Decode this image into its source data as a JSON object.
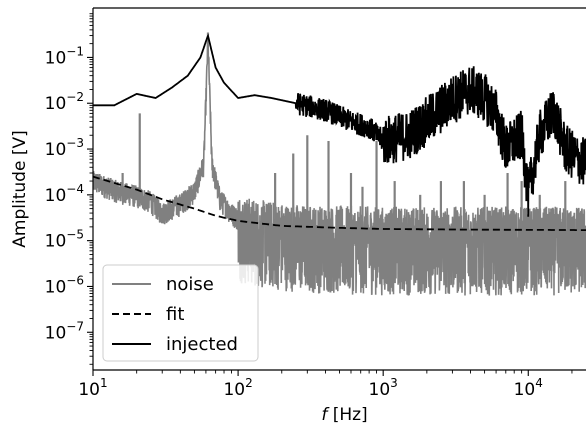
{
  "chart_data": {
    "type": "line",
    "title": "",
    "xlabel_italic": "f",
    "xlabel_unit": " [Hz]",
    "ylabel": "Amplitude [V]",
    "xscale": "log",
    "yscale": "log",
    "xlim": [
      10,
      25000
    ],
    "ylim": [
      1.5e-08,
      1.2
    ],
    "x_ticks": [
      {
        "value": 10,
        "base": "10",
        "exp": "1"
      },
      {
        "value": 100,
        "base": "10",
        "exp": "2"
      },
      {
        "value": 1000,
        "base": "10",
        "exp": "3"
      },
      {
        "value": 10000,
        "base": "10",
        "exp": "4"
      }
    ],
    "y_ticks": [
      {
        "value": 1e-07,
        "base": "10",
        "exp": "−7"
      },
      {
        "value": 1e-06,
        "base": "10",
        "exp": "−6"
      },
      {
        "value": 1e-05,
        "base": "10",
        "exp": "−5"
      },
      {
        "value": 0.0001,
        "base": "10",
        "exp": "−4"
      },
      {
        "value": 0.001,
        "base": "10",
        "exp": "−3"
      },
      {
        "value": 0.01,
        "base": "10",
        "exp": "−2"
      },
      {
        "value": 0.1,
        "base": "10",
        "exp": "−1"
      }
    ],
    "grid": false,
    "legend_position": "bottom-left",
    "series": [
      {
        "name": "noise",
        "color": "#808080",
        "style": "solid",
        "baseline": [
          [
            10,
            0.00025
          ],
          [
            15,
            0.00015
          ],
          [
            20,
            0.00012
          ],
          [
            25,
            9e-05
          ],
          [
            30,
            5e-05
          ],
          [
            40,
            8e-05
          ],
          [
            50,
            0.00015
          ],
          [
            58,
            0.0006
          ],
          [
            62,
            0.3
          ],
          [
            66,
            0.0006
          ],
          [
            75,
            0.0001
          ],
          [
            90,
            5e-05
          ],
          [
            110,
            3e-05
          ],
          [
            150,
            2.5e-05
          ],
          [
            300,
            2e-05
          ],
          [
            1000,
            1.8e-05
          ],
          [
            5000,
            1.8e-05
          ],
          [
            25000,
            1.8e-05
          ]
        ],
        "peaks": [
          [
            16,
            0.0003
          ],
          [
            21,
            0.006
          ],
          [
            62,
            0.35
          ],
          [
            180,
            0.0003
          ],
          [
            240,
            0.0008
          ],
          [
            300,
            0.002
          ],
          [
            420,
            0.0015
          ],
          [
            600,
            0.0003
          ],
          [
            720,
            0.00015
          ],
          [
            900,
            0.0015
          ],
          [
            1200,
            0.0002
          ],
          [
            1800,
            0.0001
          ],
          [
            2500,
            0.0002
          ],
          [
            3600,
            0.0002
          ],
          [
            5000,
            0.0001
          ],
          [
            7200,
            0.0003
          ],
          [
            9000,
            0.0002
          ],
          [
            12000,
            0.0001
          ],
          [
            18000,
            0.0002
          ]
        ]
      },
      {
        "name": "fit",
        "color": "#000000",
        "style": "dashed",
        "points": [
          [
            10,
            0.00025
          ],
          [
            20,
            0.00013
          ],
          [
            30,
            8e-05
          ],
          [
            50,
            5e-05
          ],
          [
            70,
            3.5e-05
          ],
          [
            100,
            2.7e-05
          ],
          [
            200,
            2.1e-05
          ],
          [
            500,
            1.9e-05
          ],
          [
            1000,
            1.8e-05
          ],
          [
            3000,
            1.75e-05
          ],
          [
            10000,
            1.72e-05
          ],
          [
            25000,
            1.7e-05
          ]
        ]
      },
      {
        "name": "injected",
        "color": "#000000",
        "style": "solid",
        "points": [
          [
            10,
            0.009
          ],
          [
            14,
            0.009
          ],
          [
            20,
            0.016
          ],
          [
            27,
            0.013
          ],
          [
            35,
            0.022
          ],
          [
            45,
            0.04
          ],
          [
            55,
            0.1
          ],
          [
            62,
            0.3
          ],
          [
            70,
            0.06
          ],
          [
            80,
            0.028
          ],
          [
            100,
            0.013
          ],
          [
            130,
            0.015
          ],
          [
            170,
            0.013
          ],
          [
            250,
            0.01
          ],
          [
            400,
            0.007
          ],
          [
            600,
            0.004
          ],
          [
            800,
            0.003
          ],
          [
            1000,
            0.0015
          ],
          [
            1500,
            0.002
          ],
          [
            2000,
            0.004
          ],
          [
            3000,
            0.012
          ],
          [
            4000,
            0.02
          ],
          [
            5000,
            0.013
          ],
          [
            6000,
            0.006
          ],
          [
            7000,
            0.001
          ],
          [
            9000,
            0.002
          ],
          [
            10000,
            0.0001
          ],
          [
            12000,
            0.002
          ],
          [
            15000,
            0.007
          ],
          [
            18000,
            0.001
          ],
          [
            22000,
            0.0006
          ],
          [
            25000,
            0.0005
          ]
        ]
      }
    ]
  }
}
